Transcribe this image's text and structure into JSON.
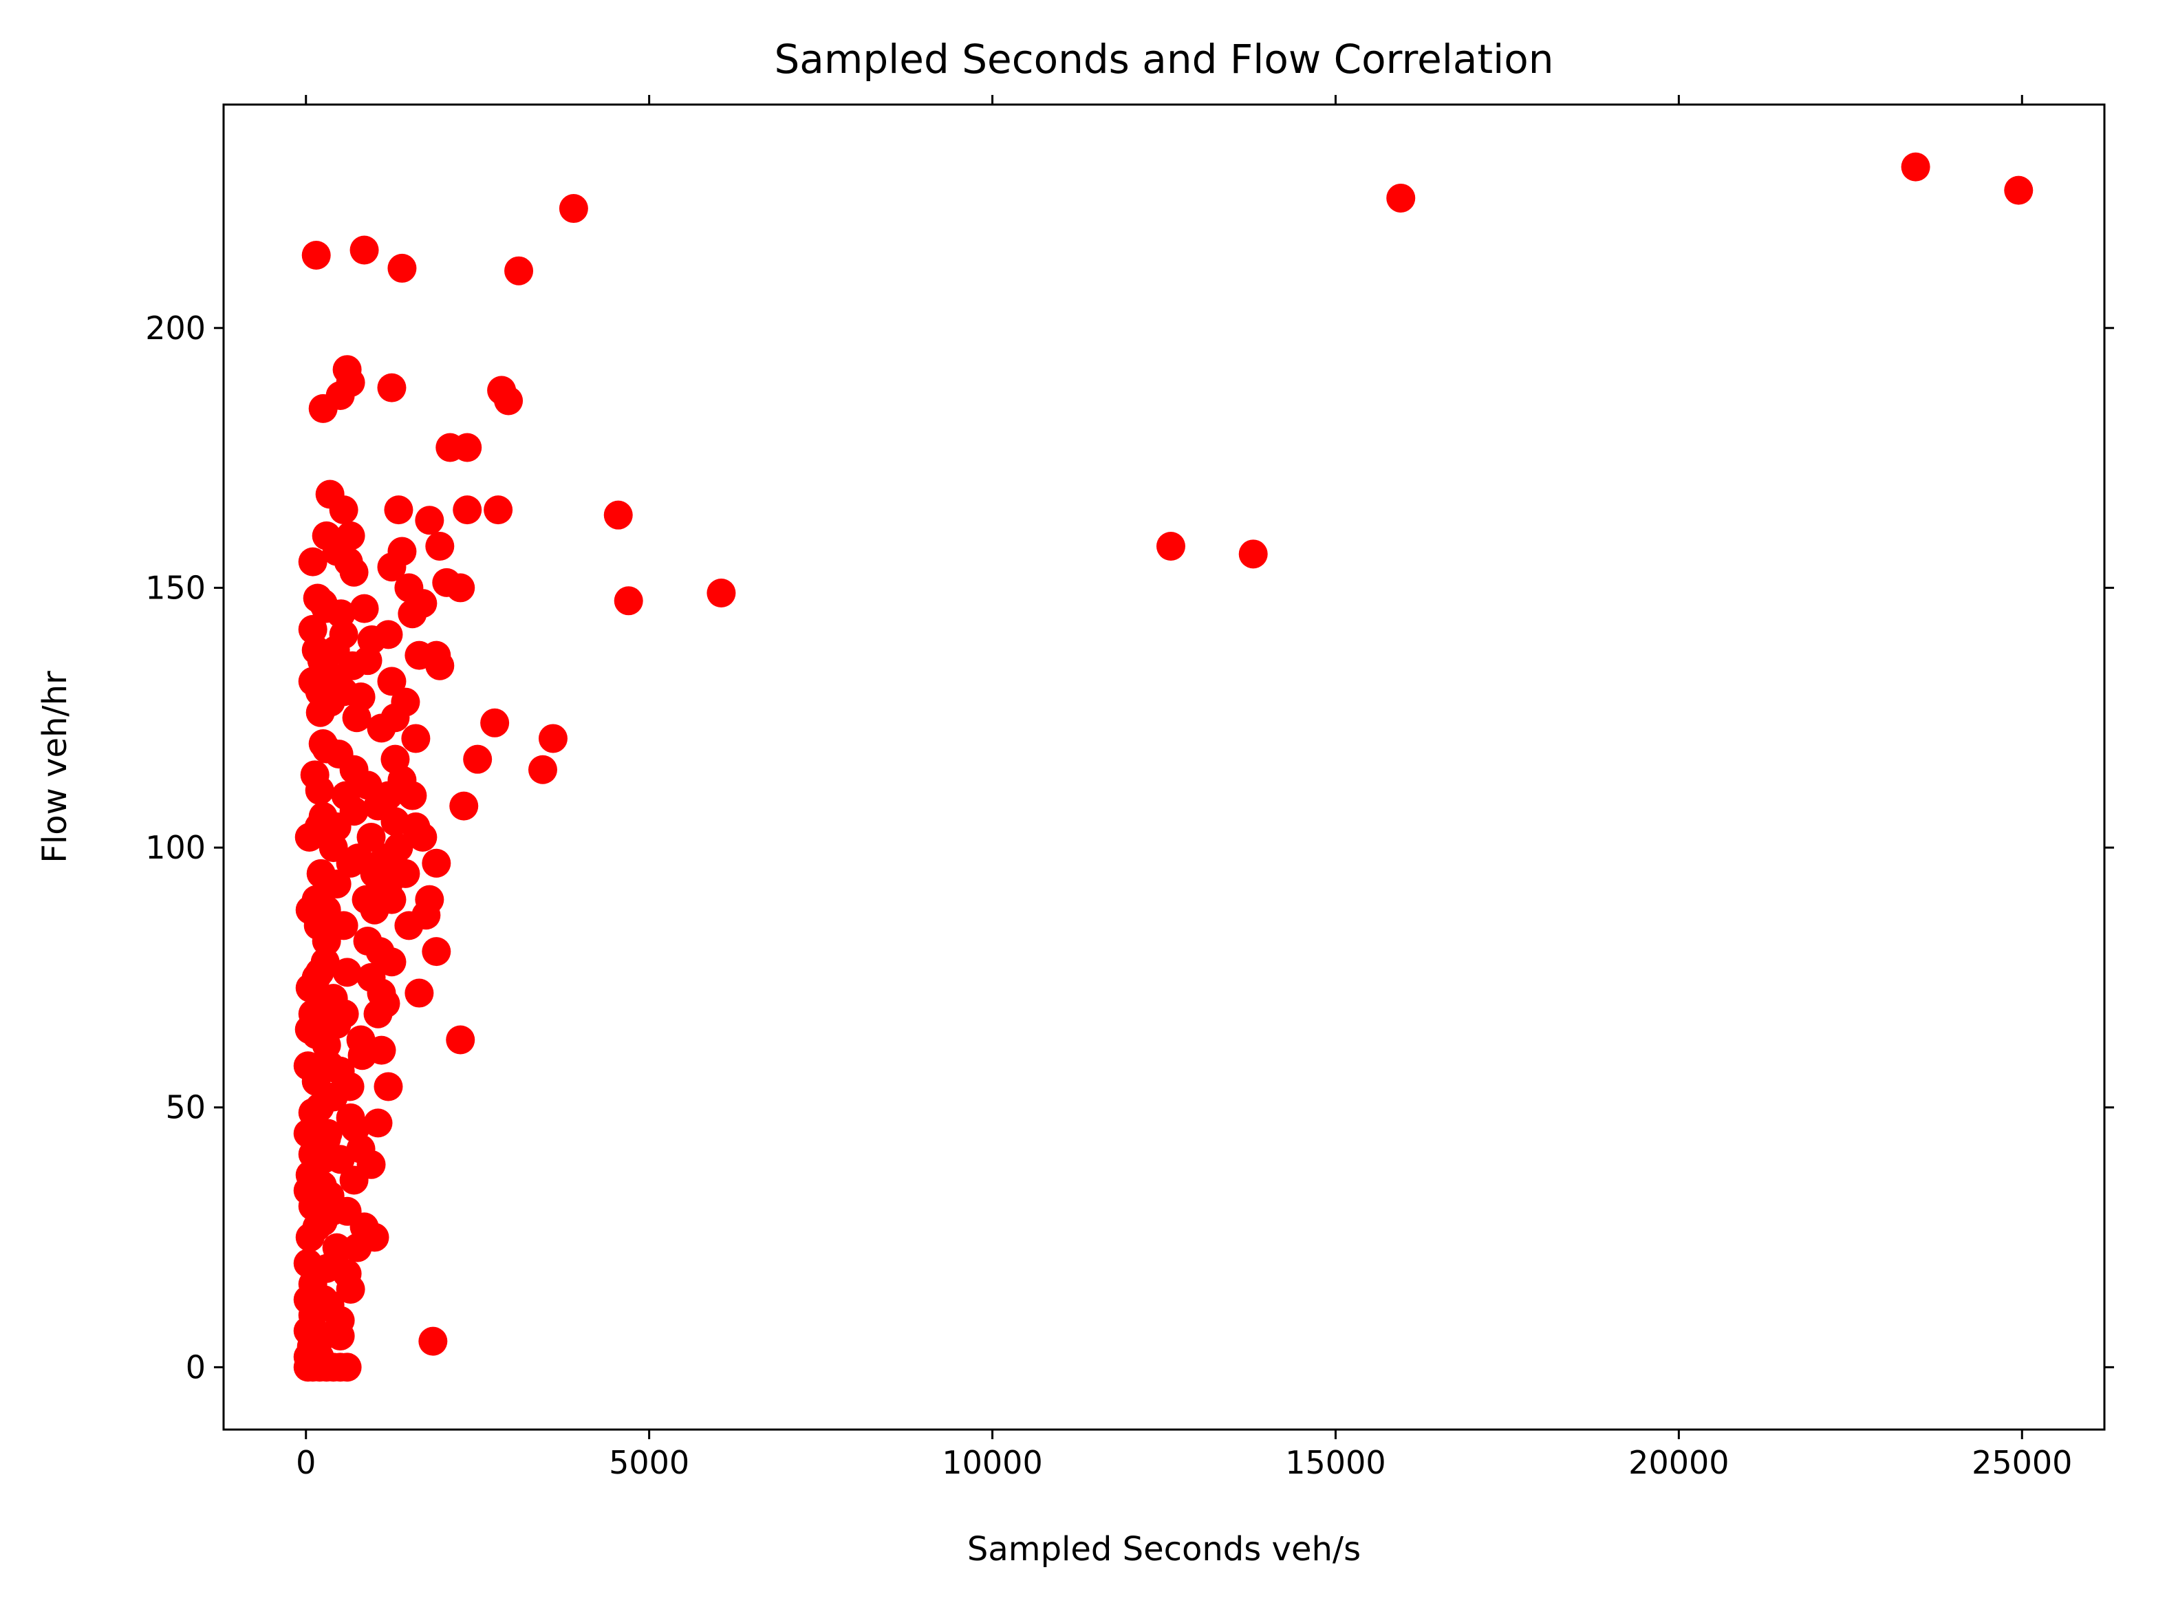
{
  "chart_data": {
    "type": "scatter",
    "title": "Sampled Seconds and Flow Correlation",
    "xlabel": "Sampled Seconds veh/s",
    "ylabel": "Flow veh/hr",
    "xlim": [
      -1200,
      26200
    ],
    "ylim": [
      -12,
      243
    ],
    "xticks": [
      0,
      5000,
      10000,
      15000,
      20000,
      25000
    ],
    "xtick_labels": [
      "0",
      "5000",
      "10000",
      "15000",
      "20000",
      "25000"
    ],
    "yticks": [
      0,
      50,
      100,
      150,
      200
    ],
    "ytick_labels": [
      "0",
      "50",
      "100",
      "150",
      "200"
    ],
    "grid": false,
    "marker_color": "#ff0000",
    "points": [
      [
        23450,
        231
      ],
      [
        24950,
        226.5
      ],
      [
        15950,
        225
      ],
      [
        3900,
        223
      ],
      [
        150,
        214
      ],
      [
        850,
        215
      ],
      [
        1400,
        211.5
      ],
      [
        3100,
        211
      ],
      [
        600,
        192
      ],
      [
        250,
        184.5
      ],
      [
        500,
        187
      ],
      [
        650,
        189.5
      ],
      [
        1250,
        188.5
      ],
      [
        2850,
        188
      ],
      [
        2950,
        186
      ],
      [
        2100,
        177
      ],
      [
        2350,
        177
      ],
      [
        350,
        168
      ],
      [
        550,
        165
      ],
      [
        1350,
        165
      ],
      [
        2350,
        165
      ],
      [
        2800,
        165
      ],
      [
        4550,
        164
      ],
      [
        1800,
        163
      ],
      [
        12600,
        158
      ],
      [
        13800,
        156.5
      ],
      [
        1950,
        158
      ],
      [
        1400,
        157
      ],
      [
        650,
        160
      ],
      [
        100,
        155
      ],
      [
        300,
        160
      ],
      [
        450,
        157
      ],
      [
        700,
        153
      ],
      [
        1250,
        154
      ],
      [
        1500,
        150
      ],
      [
        2050,
        151
      ],
      [
        2250,
        150
      ],
      [
        4700,
        147.5
      ],
      [
        6050,
        149
      ],
      [
        250,
        147
      ],
      [
        850,
        146
      ],
      [
        1700,
        147
      ],
      [
        1550,
        145
      ],
      [
        100,
        142
      ],
      [
        550,
        141
      ],
      [
        1200,
        141
      ],
      [
        150,
        138
      ],
      [
        900,
        136
      ],
      [
        1650,
        137
      ],
      [
        1900,
        137
      ],
      [
        1950,
        135
      ],
      [
        100,
        132
      ],
      [
        350,
        133
      ],
      [
        200,
        130
      ],
      [
        550,
        130
      ],
      [
        800,
        129
      ],
      [
        1250,
        132
      ],
      [
        1100,
        123
      ],
      [
        1300,
        125
      ],
      [
        2750,
        124
      ],
      [
        3600,
        121
      ],
      [
        1600,
        121
      ],
      [
        250,
        120
      ],
      [
        300,
        119
      ],
      [
        2500,
        117
      ],
      [
        3450,
        115
      ],
      [
        1300,
        117
      ],
      [
        700,
        115
      ],
      [
        900,
        112
      ],
      [
        200,
        111
      ],
      [
        1200,
        110
      ],
      [
        1550,
        110
      ],
      [
        2300,
        108
      ],
      [
        250,
        106
      ],
      [
        450,
        104
      ],
      [
        700,
        107
      ],
      [
        950,
        102
      ],
      [
        1300,
        105
      ],
      [
        1600,
        104
      ],
      [
        1700,
        102
      ],
      [
        50,
        102
      ],
      [
        400,
        100
      ],
      [
        650,
        97
      ],
      [
        1000,
        95
      ],
      [
        1900,
        97
      ],
      [
        1200,
        93
      ],
      [
        450,
        93
      ],
      [
        150,
        90
      ],
      [
        300,
        88
      ],
      [
        550,
        85
      ],
      [
        1000,
        88
      ],
      [
        1250,
        90
      ],
      [
        1800,
        90
      ],
      [
        1750,
        87
      ],
      [
        60,
        88
      ],
      [
        300,
        82
      ],
      [
        900,
        82
      ],
      [
        1900,
        80
      ],
      [
        1250,
        78
      ],
      [
        200,
        76
      ],
      [
        600,
        76
      ],
      [
        950,
        75
      ],
      [
        1650,
        72
      ],
      [
        60,
        73
      ],
      [
        400,
        71
      ],
      [
        1100,
        72
      ],
      [
        100,
        68
      ],
      [
        450,
        66
      ],
      [
        1050,
        68
      ],
      [
        2250,
        63
      ],
      [
        50,
        65
      ],
      [
        300,
        62
      ],
      [
        800,
        63
      ],
      [
        1100,
        61
      ],
      [
        30,
        58
      ],
      [
        500,
        57
      ],
      [
        150,
        55
      ],
      [
        1200,
        54
      ],
      [
        400,
        52
      ],
      [
        100,
        49
      ],
      [
        650,
        48
      ],
      [
        1050,
        47
      ],
      [
        30,
        45
      ],
      [
        300,
        44
      ],
      [
        800,
        42
      ],
      [
        100,
        41
      ],
      [
        500,
        40
      ],
      [
        950,
        39
      ],
      [
        60,
        37
      ],
      [
        700,
        36
      ],
      [
        30,
        34
      ],
      [
        350,
        33
      ],
      [
        100,
        31
      ],
      [
        600,
        30
      ],
      [
        250,
        28
      ],
      [
        850,
        27
      ],
      [
        1000,
        25
      ],
      [
        60,
        25
      ],
      [
        450,
        23
      ],
      [
        750,
        23
      ],
      [
        30,
        20
      ],
      [
        300,
        19
      ],
      [
        600,
        18
      ],
      [
        100,
        16
      ],
      [
        650,
        15
      ],
      [
        30,
        13
      ],
      [
        350,
        12
      ],
      [
        100,
        10
      ],
      [
        500,
        9
      ],
      [
        30,
        7
      ],
      [
        250,
        6
      ],
      [
        500,
        6
      ],
      [
        80,
        4
      ],
      [
        1850,
        5
      ],
      [
        30,
        2
      ],
      [
        200,
        2
      ],
      [
        30,
        0
      ],
      [
        100,
        0
      ],
      [
        200,
        0
      ],
      [
        300,
        0
      ],
      [
        400,
        0
      ],
      [
        500,
        0
      ],
      [
        600,
        0
      ],
      [
        150,
        75
      ],
      [
        200,
        50
      ],
      [
        250,
        40
      ],
      [
        350,
        58
      ],
      [
        150,
        64
      ],
      [
        180,
        85
      ],
      [
        220,
        95
      ],
      [
        280,
        78
      ],
      [
        320,
        45
      ],
      [
        380,
        30
      ],
      [
        420,
        20
      ],
      [
        260,
        13
      ],
      [
        160,
        27
      ],
      [
        240,
        35
      ],
      [
        340,
        70
      ],
      [
        560,
        68
      ],
      [
        640,
        54
      ],
      [
        720,
        46
      ],
      [
        820,
        60
      ],
      [
        880,
        90
      ],
      [
        760,
        98
      ],
      [
        580,
        110
      ],
      [
        480,
        118
      ],
      [
        360,
        128
      ],
      [
        430,
        138
      ],
      [
        510,
        145
      ],
      [
        620,
        155
      ],
      [
        680,
        135
      ],
      [
        740,
        125
      ],
      [
        960,
        140
      ],
      [
        1050,
        108
      ],
      [
        1150,
        98
      ],
      [
        1350,
        100
      ],
      [
        1450,
        95
      ],
      [
        1500,
        85
      ],
      [
        1080,
        80
      ],
      [
        1160,
        70
      ],
      [
        1400,
        113
      ],
      [
        1450,
        128
      ],
      [
        130,
        114
      ],
      [
        190,
        104
      ],
      [
        210,
        126
      ],
      [
        290,
        146
      ],
      [
        230,
        136
      ],
      [
        170,
        148
      ]
    ]
  }
}
